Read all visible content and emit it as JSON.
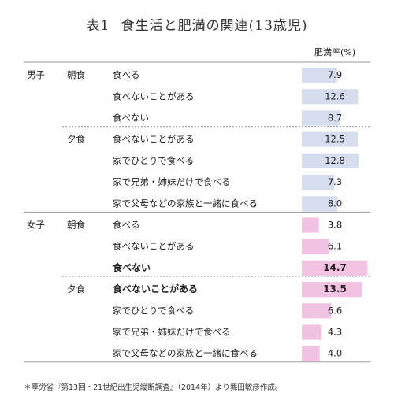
{
  "title": {
    "label": "表1",
    "text": "食生活と肥満の関連(13歳児)"
  },
  "column_header": "肥満率(%)",
  "footnote": "＊厚労省『第13回・21世紀出生児縦断調査』（2014年）より舞田敏彦作成。",
  "colors": {
    "boys_bar": "#d6ddee",
    "girls_bar": "#f2c2e2",
    "rule": "#9a9a9a",
    "text": "#222222"
  },
  "chart_data": {
    "type": "bar",
    "orientation": "horizontal",
    "title": "食生活と肥満の関連(13歳児)",
    "value_label": "肥満率(%)",
    "groups": [
      {
        "name": "男子",
        "subgroups": [
          {
            "name": "朝食",
            "items": [
              {
                "label": "食べる",
                "value": 7.9,
                "bold": false
              },
              {
                "label": "食べないことがある",
                "value": 12.6,
                "bold": false
              },
              {
                "label": "食べない",
                "value": 8.7,
                "bold": false
              }
            ]
          },
          {
            "name": "夕食",
            "items": [
              {
                "label": "食べないことがある",
                "value": 12.5,
                "bold": false
              },
              {
                "label": "家でひとりで食べる",
                "value": 12.8,
                "bold": false
              },
              {
                "label": "家で兄弟・姉妹だけで食べる",
                "value": 7.3,
                "bold": false
              },
              {
                "label": "家で父母などの家族と一緒に食べる",
                "value": 8.0,
                "bold": false
              }
            ]
          }
        ]
      },
      {
        "name": "女子",
        "subgroups": [
          {
            "name": "朝食",
            "items": [
              {
                "label": "食べる",
                "value": 3.8,
                "bold": false
              },
              {
                "label": "食べないことがある",
                "value": 6.1,
                "bold": false
              },
              {
                "label": "食べない",
                "value": 14.7,
                "bold": true
              }
            ]
          },
          {
            "name": "夕食",
            "items": [
              {
                "label": "食べないことがある",
                "value": 13.5,
                "bold": true
              },
              {
                "label": "家でひとりで食べる",
                "value": 6.6,
                "bold": false
              },
              {
                "label": "家で兄弟・姉妹だけで食べる",
                "value": 4.3,
                "bold": false
              },
              {
                "label": "家で父母などの家族と一緒に食べる",
                "value": 4.0,
                "bold": false
              }
            ]
          }
        ]
      }
    ]
  }
}
